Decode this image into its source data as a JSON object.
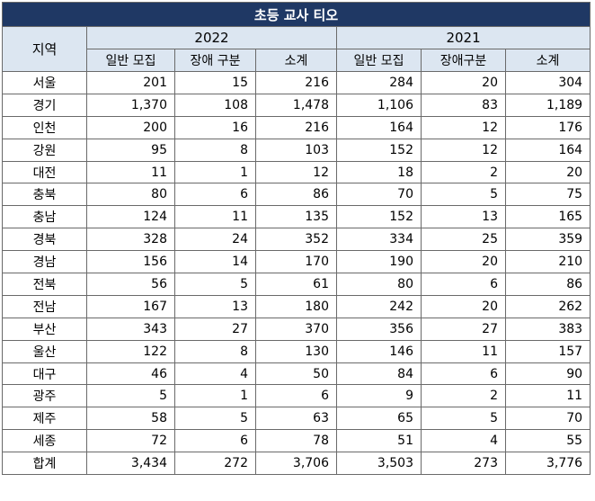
{
  "title": "초등 교사 티오",
  "region_header": "지역",
  "years": [
    "2022",
    "2021"
  ],
  "sub_headers": {
    "2022": [
      "일반 모집",
      "장애 구분",
      "소계"
    ],
    "2021": [
      "일반 모집",
      "장애구분",
      "소계"
    ]
  },
  "rows": [
    {
      "region": "서울",
      "v": [
        "201",
        "15",
        "216",
        "284",
        "20",
        "304"
      ]
    },
    {
      "region": "경기",
      "v": [
        "1,370",
        "108",
        "1,478",
        "1,106",
        "83",
        "1,189"
      ]
    },
    {
      "region": "인천",
      "v": [
        "200",
        "16",
        "216",
        "164",
        "12",
        "176"
      ]
    },
    {
      "region": "강원",
      "v": [
        "95",
        "8",
        "103",
        "152",
        "12",
        "164"
      ]
    },
    {
      "region": "대전",
      "v": [
        "11",
        "1",
        "12",
        "18",
        "2",
        "20"
      ]
    },
    {
      "region": "충북",
      "v": [
        "80",
        "6",
        "86",
        "70",
        "5",
        "75"
      ]
    },
    {
      "region": "충남",
      "v": [
        "124",
        "11",
        "135",
        "152",
        "13",
        "165"
      ]
    },
    {
      "region": "경북",
      "v": [
        "328",
        "24",
        "352",
        "334",
        "25",
        "359"
      ]
    },
    {
      "region": "경남",
      "v": [
        "156",
        "14",
        "170",
        "190",
        "20",
        "210"
      ]
    },
    {
      "region": "전북",
      "v": [
        "56",
        "5",
        "61",
        "80",
        "6",
        "86"
      ]
    },
    {
      "region": "전남",
      "v": [
        "167",
        "13",
        "180",
        "242",
        "20",
        "262"
      ]
    },
    {
      "region": "부산",
      "v": [
        "343",
        "27",
        "370",
        "356",
        "27",
        "383"
      ]
    },
    {
      "region": "울산",
      "v": [
        "122",
        "8",
        "130",
        "146",
        "11",
        "157"
      ]
    },
    {
      "region": "대구",
      "v": [
        "46",
        "4",
        "50",
        "84",
        "6",
        "90"
      ]
    },
    {
      "region": "광주",
      "v": [
        "5",
        "1",
        "6",
        "9",
        "2",
        "11"
      ]
    },
    {
      "region": "제주",
      "v": [
        "58",
        "5",
        "63",
        "65",
        "5",
        "70"
      ]
    },
    {
      "region": "세종",
      "v": [
        "72",
        "6",
        "78",
        "51",
        "4",
        "55"
      ]
    },
    {
      "region": "합계",
      "v": [
        "3,434",
        "272",
        "3,706",
        "3,503",
        "273",
        "3,776"
      ]
    }
  ],
  "colors": {
    "title_bg": "#1f3864",
    "title_text": "#ffffff",
    "header_bg": "#dce6f1",
    "border": "#6a6a6a"
  }
}
